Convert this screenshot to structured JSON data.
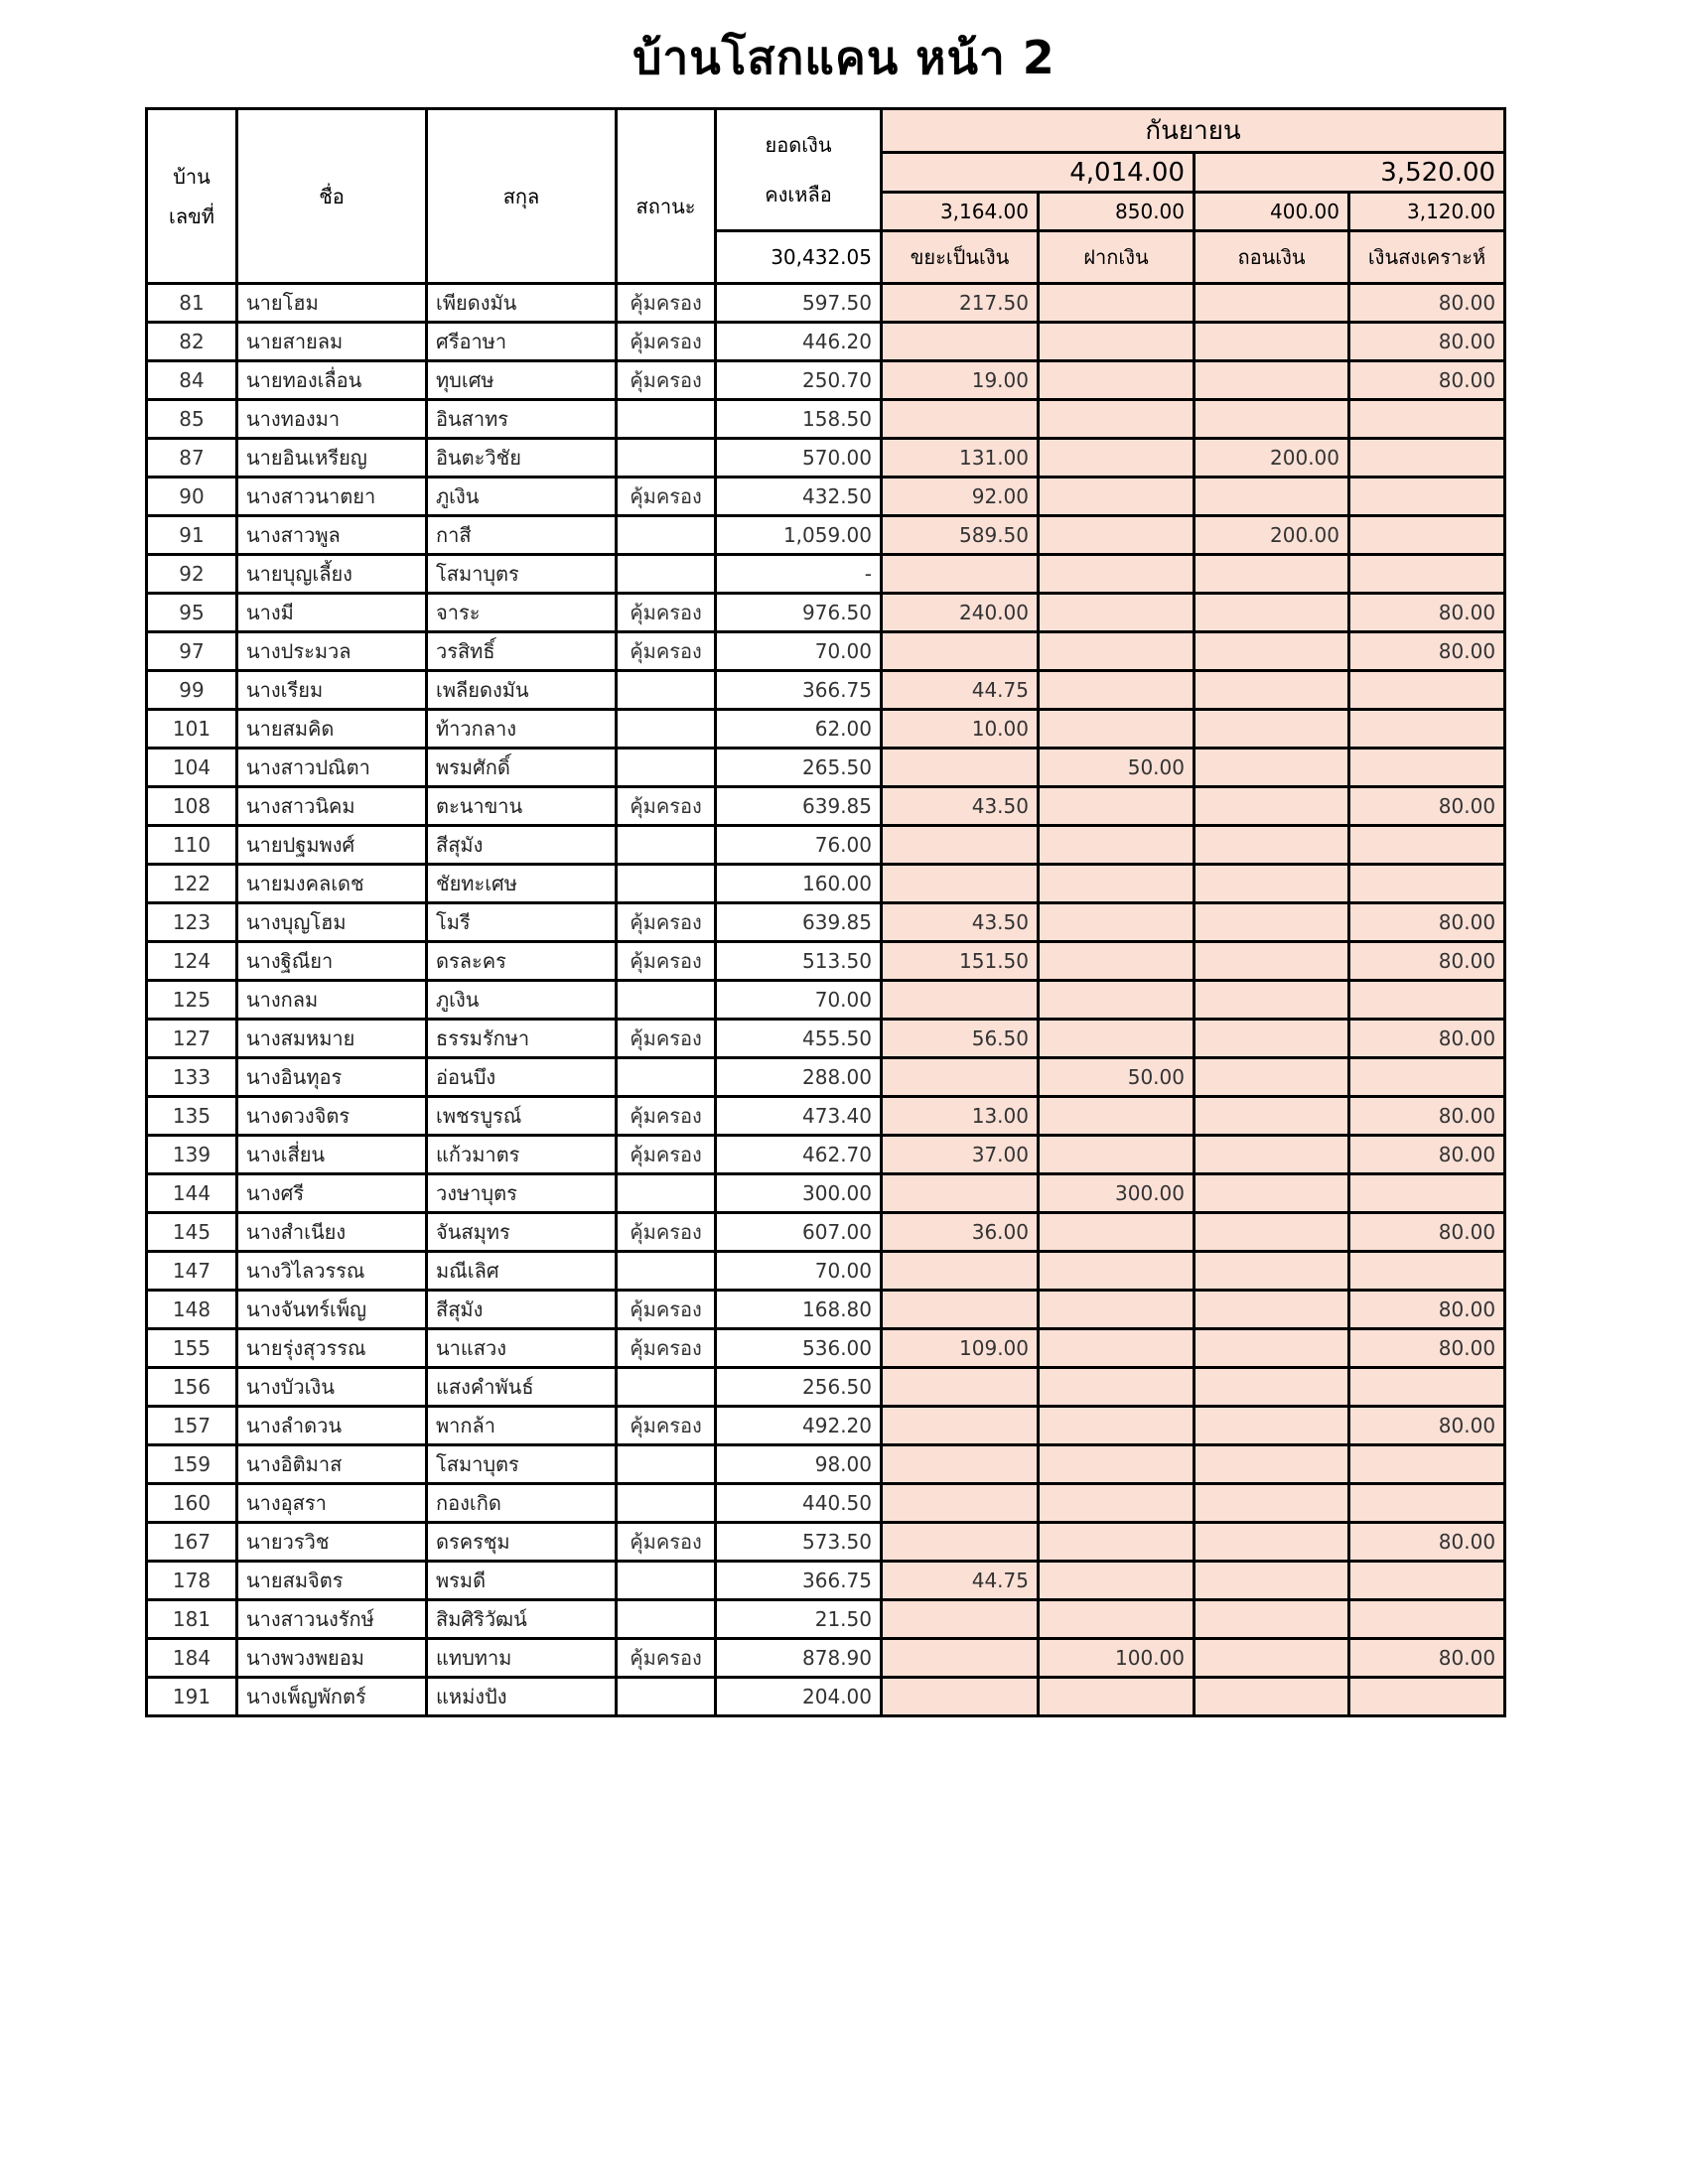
{
  "title": "บ้านโสกแคน  หน้า 2",
  "header": {
    "house_no": "บ้าน\nเลขที่",
    "house_no_l1": "บ้าน",
    "house_no_l2": "เลขที่",
    "first_name": "ชื่อ",
    "last_name": "สกุล",
    "status": "สถานะ",
    "balance_l1": "ยอดเงิน",
    "balance_l2": "คงเหลือ",
    "balance_total": "30,432.05",
    "month": "กันยายน",
    "group_totals": [
      "4,014.00",
      "3,520.00"
    ],
    "col_totals": [
      "3,164.00",
      "850.00",
      "400.00",
      "3,120.00"
    ],
    "col_labels": [
      "ขยะเป็นเงิน",
      "ฝากเงิน",
      "ถอนเงิน",
      "เงินสงเคราะห์"
    ]
  },
  "colors": {
    "highlight_fill": "#fbe0d6",
    "border": "#000000"
  },
  "rows": [
    {
      "no": "81",
      "name": "นายโฮม",
      "surname": "เพียดงมัน",
      "status": "คุ้มครอง",
      "balance": "597.50",
      "waste": "217.50",
      "deposit": "",
      "withdraw": "",
      "welfare": "80.00"
    },
    {
      "no": "82",
      "name": "นายสายลม",
      "surname": "ศรีอาษา",
      "status": "คุ้มครอง",
      "balance": "446.20",
      "waste": "",
      "deposit": "",
      "withdraw": "",
      "welfare": "80.00"
    },
    {
      "no": "84",
      "name": "นายทองเลื่อน",
      "surname": "ทุบเศษ",
      "status": "คุ้มครอง",
      "balance": "250.70",
      "waste": "19.00",
      "deposit": "",
      "withdraw": "",
      "welfare": "80.00"
    },
    {
      "no": "85",
      "name": "นางทองมา",
      "surname": "อินสาทร",
      "status": "",
      "balance": "158.50",
      "waste": "",
      "deposit": "",
      "withdraw": "",
      "welfare": ""
    },
    {
      "no": "87",
      "name": "นายอินเหรียญ",
      "surname": "อินตะวิชัย",
      "status": "",
      "balance": "570.00",
      "waste": "131.00",
      "deposit": "",
      "withdraw": "200.00",
      "welfare": ""
    },
    {
      "no": "90",
      "name": "นางสาวนาตยา",
      "surname": "ภูเงิน",
      "status": "คุ้มครอง",
      "balance": "432.50",
      "waste": "92.00",
      "deposit": "",
      "withdraw": "",
      "welfare": ""
    },
    {
      "no": "91",
      "name": "นางสาวพูล",
      "surname": "กาสี",
      "status": "",
      "balance": "1,059.00",
      "waste": "589.50",
      "deposit": "",
      "withdraw": "200.00",
      "welfare": ""
    },
    {
      "no": "92",
      "name": "นายบุญเลี้ยง",
      "surname": "โสมาบุตร",
      "status": "",
      "balance": "-",
      "waste": "",
      "deposit": "",
      "withdraw": "",
      "welfare": ""
    },
    {
      "no": "95",
      "name": "นางมี",
      "surname": "จาระ",
      "status": "คุ้มครอง",
      "balance": "976.50",
      "waste": "240.00",
      "deposit": "",
      "withdraw": "",
      "welfare": "80.00"
    },
    {
      "no": "97",
      "name": "นางประมวล",
      "surname": "วรสิทธิ์",
      "status": "คุ้มครอง",
      "balance": "70.00",
      "waste": "",
      "deposit": "",
      "withdraw": "",
      "welfare": "80.00"
    },
    {
      "no": "99",
      "name": "นางเรียม",
      "surname": "เพลียดงมัน",
      "status": "",
      "balance": "366.75",
      "waste": "44.75",
      "deposit": "",
      "withdraw": "",
      "welfare": ""
    },
    {
      "no": "101",
      "name": "นายสมคิด",
      "surname": "ท้าวกลาง",
      "status": "",
      "balance": "62.00",
      "waste": "10.00",
      "deposit": "",
      "withdraw": "",
      "welfare": ""
    },
    {
      "no": "104",
      "name": "นางสาวปณิตา",
      "surname": "พรมศักดิ์",
      "status": "",
      "balance": "265.50",
      "waste": "",
      "deposit": "50.00",
      "withdraw": "",
      "welfare": ""
    },
    {
      "no": "108",
      "name": "นางสาวนิคม",
      "surname": "ตะนาขาน",
      "status": "คุ้มครอง",
      "balance": "639.85",
      "waste": "43.50",
      "deposit": "",
      "withdraw": "",
      "welfare": "80.00"
    },
    {
      "no": "110",
      "name": "นายปฐมพงศ์",
      "surname": "สีสุมัง",
      "status": "",
      "balance": "76.00",
      "waste": "",
      "deposit": "",
      "withdraw": "",
      "welfare": ""
    },
    {
      "no": "122",
      "name": "นายมงคลเดช",
      "surname": "ชัยทะเศษ",
      "status": "",
      "balance": "160.00",
      "waste": "",
      "deposit": "",
      "withdraw": "",
      "welfare": ""
    },
    {
      "no": "123",
      "name": "นางบุญโฮม",
      "surname": "โมรี",
      "status": "คุ้มครอง",
      "balance": "639.85",
      "waste": "43.50",
      "deposit": "",
      "withdraw": "",
      "welfare": "80.00"
    },
    {
      "no": "124",
      "name": "นางฐิณียา",
      "surname": "ดรละคร",
      "status": "คุ้มครอง",
      "balance": "513.50",
      "waste": "151.50",
      "deposit": "",
      "withdraw": "",
      "welfare": "80.00"
    },
    {
      "no": "125",
      "name": "นางกลม",
      "surname": "ภูเงิน",
      "status": "",
      "balance": "70.00",
      "waste": "",
      "deposit": "",
      "withdraw": "",
      "welfare": ""
    },
    {
      "no": "127",
      "name": "นางสมหมาย",
      "surname": "ธรรมรักษา",
      "status": "คุ้มครอง",
      "balance": "455.50",
      "waste": "56.50",
      "deposit": "",
      "withdraw": "",
      "welfare": "80.00"
    },
    {
      "no": "133",
      "name": "นางอินทุอร",
      "surname": "อ่อนบึง",
      "status": "",
      "balance": "288.00",
      "waste": "",
      "deposit": "50.00",
      "withdraw": "",
      "welfare": ""
    },
    {
      "no": "135",
      "name": "นางดวงจิตร",
      "surname": "เพชรบูรณ์",
      "status": "คุ้มครอง",
      "balance": "473.40",
      "waste": "13.00",
      "deposit": "",
      "withdraw": "",
      "welfare": "80.00"
    },
    {
      "no": "139",
      "name": "นางเสี่ยน",
      "surname": "แก้วมาตร",
      "status": "คุ้มครอง",
      "balance": "462.70",
      "waste": "37.00",
      "deposit": "",
      "withdraw": "",
      "welfare": "80.00"
    },
    {
      "no": "144",
      "name": "นางศรี",
      "surname": "วงษาบุตร",
      "status": "",
      "balance": "300.00",
      "waste": "",
      "deposit": "300.00",
      "withdraw": "",
      "welfare": ""
    },
    {
      "no": "145",
      "name": "นางสำเนียง",
      "surname": "จันสมุทร",
      "status": "คุ้มครอง",
      "balance": "607.00",
      "waste": "36.00",
      "deposit": "",
      "withdraw": "",
      "welfare": "80.00"
    },
    {
      "no": "147",
      "name": "นางวิไลวรรณ",
      "surname": "มณีเลิศ",
      "status": "",
      "balance": "70.00",
      "waste": "",
      "deposit": "",
      "withdraw": "",
      "welfare": ""
    },
    {
      "no": "148",
      "name": "นางจันทร์เพ็ญ",
      "surname": "สีสุมัง",
      "status": "คุ้มครอง",
      "balance": "168.80",
      "waste": "",
      "deposit": "",
      "withdraw": "",
      "welfare": "80.00"
    },
    {
      "no": "155",
      "name": "นายรุ่งสุวรรณ",
      "surname": "นาแสวง",
      "status": "คุ้มครอง",
      "balance": "536.00",
      "waste": "109.00",
      "deposit": "",
      "withdraw": "",
      "welfare": "80.00"
    },
    {
      "no": "156",
      "name": "นางบัวเงิน",
      "surname": "แสงคำพันธ์",
      "status": "",
      "balance": "256.50",
      "waste": "",
      "deposit": "",
      "withdraw": "",
      "welfare": ""
    },
    {
      "no": "157",
      "name": "นางลำดวน",
      "surname": "พากล้า",
      "status": "คุ้มครอง",
      "balance": "492.20",
      "waste": "",
      "deposit": "",
      "withdraw": "",
      "welfare": "80.00"
    },
    {
      "no": "159",
      "name": "นางอิติมาส",
      "surname": "โสมาบุตร",
      "status": "",
      "balance": "98.00",
      "waste": "",
      "deposit": "",
      "withdraw": "",
      "welfare": ""
    },
    {
      "no": "160",
      "name": "นางอุสรา",
      "surname": "กองเกิด",
      "status": "",
      "balance": "440.50",
      "waste": "",
      "deposit": "",
      "withdraw": "",
      "welfare": ""
    },
    {
      "no": "167",
      "name": "นายวรวิช",
      "surname": "ดรครชุม",
      "status": "คุ้มครอง",
      "balance": "573.50",
      "waste": "",
      "deposit": "",
      "withdraw": "",
      "welfare": "80.00"
    },
    {
      "no": "178",
      "name": "นายสมจิตร",
      "surname": "พรมดี",
      "status": "",
      "balance": "366.75",
      "waste": "44.75",
      "deposit": "",
      "withdraw": "",
      "welfare": ""
    },
    {
      "no": "181",
      "name": "นางสาวนงรักษ์",
      "surname": "สิมศิริวัฒน์",
      "status": "",
      "balance": "21.50",
      "waste": "",
      "deposit": "",
      "withdraw": "",
      "welfare": ""
    },
    {
      "no": "184",
      "name": "นางพวงพยอม",
      "surname": "แทบทาม",
      "status": "คุ้มครอง",
      "balance": "878.90",
      "waste": "",
      "deposit": "100.00",
      "withdraw": "",
      "welfare": "80.00"
    },
    {
      "no": "191",
      "name": "นางเพ็ญพักตร์",
      "surname": "แหม่งปัง",
      "status": "",
      "balance": "204.00",
      "waste": "",
      "deposit": "",
      "withdraw": "",
      "welfare": ""
    }
  ]
}
